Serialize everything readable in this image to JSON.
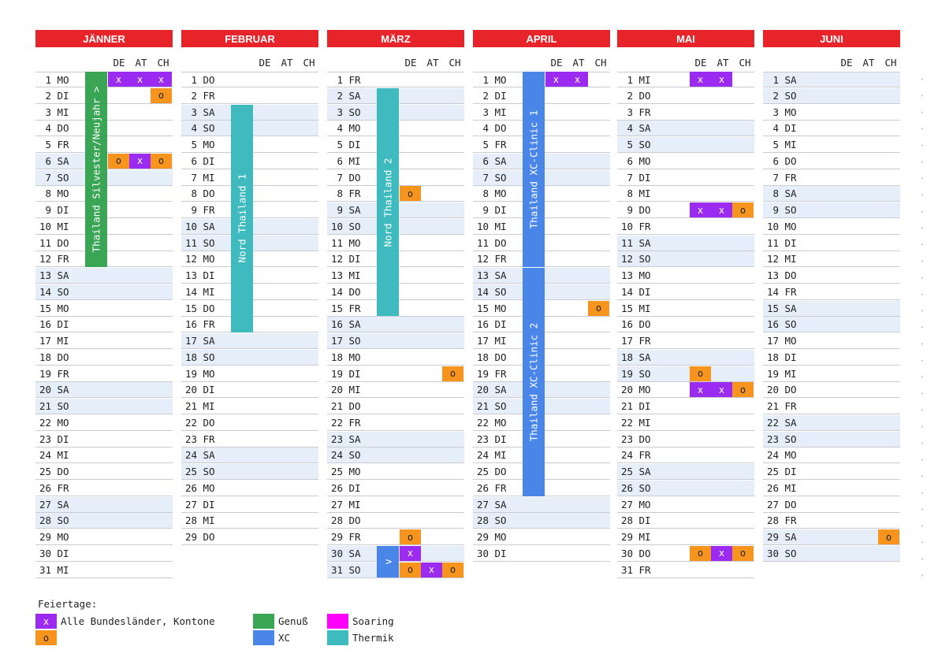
{
  "months": [
    {
      "name": "JÄNNER",
      "days": 31,
      "start": 0
    },
    {
      "name": "FEBRUAR",
      "days": 29,
      "start": 3
    },
    {
      "name": "MÄRZ",
      "days": 31,
      "start": 4
    },
    {
      "name": "APRIL",
      "days": 30,
      "start": 0
    },
    {
      "name": "MAI",
      "days": 31,
      "start": 2
    },
    {
      "name": "JUNI",
      "days": 30,
      "start": 5
    }
  ],
  "weekdays": [
    "MO",
    "DI",
    "MI",
    "DO",
    "FR",
    "SA",
    "SO"
  ],
  "region_columns": [
    "DE",
    "AT",
    "CH"
  ],
  "holidays": [
    {
      "month": 0,
      "day": 1,
      "col": 0,
      "mark": "x"
    },
    {
      "month": 0,
      "day": 1,
      "col": 1,
      "mark": "x"
    },
    {
      "month": 0,
      "day": 1,
      "col": 2,
      "mark": "x"
    },
    {
      "month": 0,
      "day": 2,
      "col": 2,
      "mark": "o"
    },
    {
      "month": 0,
      "day": 6,
      "col": 0,
      "mark": "o"
    },
    {
      "month": 0,
      "day": 6,
      "col": 1,
      "mark": "x"
    },
    {
      "month": 0,
      "day": 6,
      "col": 2,
      "mark": "o"
    },
    {
      "month": 2,
      "day": 8,
      "col": 0,
      "mark": "o"
    },
    {
      "month": 2,
      "day": 19,
      "col": 2,
      "mark": "o"
    },
    {
      "month": 2,
      "day": 29,
      "col": 0,
      "mark": "o"
    },
    {
      "month": 2,
      "day": 30,
      "col": 0,
      "mark": "x"
    },
    {
      "month": 2,
      "day": 31,
      "col": 0,
      "mark": "o"
    },
    {
      "month": 2,
      "day": 31,
      "col": 1,
      "mark": "x"
    },
    {
      "month": 2,
      "day": 31,
      "col": 2,
      "mark": "o"
    },
    {
      "month": 3,
      "day": 1,
      "col": 0,
      "mark": "x"
    },
    {
      "month": 3,
      "day": 1,
      "col": 1,
      "mark": "x"
    },
    {
      "month": 3,
      "day": 15,
      "col": 2,
      "mark": "o"
    },
    {
      "month": 4,
      "day": 1,
      "col": 0,
      "mark": "x"
    },
    {
      "month": 4,
      "day": 1,
      "col": 1,
      "mark": "x"
    },
    {
      "month": 4,
      "day": 9,
      "col": 0,
      "mark": "x"
    },
    {
      "month": 4,
      "day": 9,
      "col": 1,
      "mark": "x"
    },
    {
      "month": 4,
      "day": 9,
      "col": 2,
      "mark": "o"
    },
    {
      "month": 4,
      "day": 19,
      "col": 0,
      "mark": "o"
    },
    {
      "month": 4,
      "day": 20,
      "col": 0,
      "mark": "x"
    },
    {
      "month": 4,
      "day": 20,
      "col": 1,
      "mark": "x"
    },
    {
      "month": 4,
      "day": 20,
      "col": 2,
      "mark": "o"
    },
    {
      "month": 4,
      "day": 30,
      "col": 0,
      "mark": "o"
    },
    {
      "month": 4,
      "day": 30,
      "col": 1,
      "mark": "x"
    },
    {
      "month": 4,
      "day": 30,
      "col": 2,
      "mark": "o"
    },
    {
      "month": 5,
      "day": 29,
      "col": 2,
      "mark": "o"
    }
  ],
  "events": [
    {
      "month": 0,
      "from": 1,
      "to": 12,
      "label": "Thailand Silvester/Neujahr >",
      "color": "#3aa655"
    },
    {
      "month": 1,
      "from": 3,
      "to": 16,
      "label": "Nord Thailand 1",
      "color": "#3fbbbf"
    },
    {
      "month": 2,
      "from": 2,
      "to": 15,
      "label": "Nord Thailand 2",
      "color": "#3fbbbf"
    },
    {
      "month": 2,
      "from": 30,
      "to": 31,
      "label": "v",
      "color": "#4a86e8"
    },
    {
      "month": 3,
      "from": 1,
      "to": 12,
      "label": "Thailand XC-Clinic 1",
      "color": "#4a86e8"
    },
    {
      "month": 3,
      "from": 13,
      "to": 26,
      "label": "Thailand XC-Clinic 2",
      "color": "#4a86e8"
    }
  ],
  "legend": {
    "title": "Feiertage:",
    "holiday_x_mark": "x",
    "holiday_x_label": "Alle Bundesländer, Kontone",
    "holiday_o_mark": "o",
    "categories": [
      {
        "label": "Genuß",
        "color": "#3aa655"
      },
      {
        "label": "XC",
        "color": "#4a86e8"
      },
      {
        "label": "Soaring",
        "color": "#ff00ff"
      },
      {
        "label": "Thermik",
        "color": "#3fbbbf"
      }
    ]
  },
  "colors": {
    "header": "#e8242b",
    "holiday_x": "#9b2bf0",
    "holiday_o": "#f7941d",
    "weekend": "#e6eefa"
  }
}
